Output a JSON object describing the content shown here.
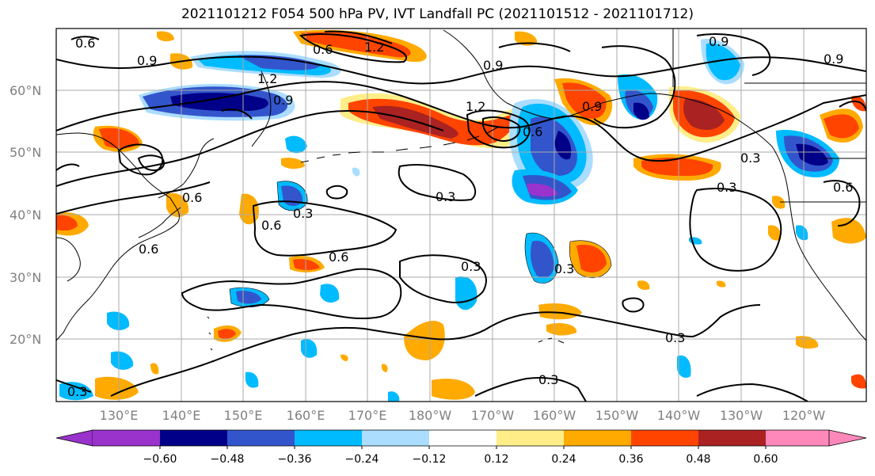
{
  "title": "2021101212 F054 500 hPa PV, IVT Landfall PC (2021101512 - 2021101712)",
  "map": {
    "lat_labels": [
      "60°N",
      "50°N",
      "40°N",
      "30°N",
      "20°N"
    ],
    "lon_labels": [
      "130°E",
      "140°E",
      "150°E",
      "160°E",
      "170°E",
      "180°W",
      "170°W",
      "160°W",
      "150°W",
      "140°W",
      "130°W",
      "120°W"
    ],
    "contour_labels": [
      "0.6",
      "0.9",
      "1.2",
      "0.6",
      "0.9",
      "1.2",
      "1.2",
      "0.6",
      "0.9",
      "0.9",
      "0.9",
      "0.6",
      "0.6",
      "0.3",
      "0.6",
      "0.3",
      "0.6",
      "0.3",
      "0.3",
      "0.3",
      "0.3",
      "0.3",
      "0.9",
      "0.3",
      "0.3",
      "0.6"
    ],
    "colors": {
      "neg_060": "#9933cc",
      "neg_048": "#000088",
      "neg_036": "#3355cc",
      "neg_024": "#00bbff",
      "neg_012": "#aaddff",
      "pos_012": "#ffee88",
      "pos_024": "#ffaa00",
      "pos_036": "#ff4400",
      "pos_048": "#aa2222",
      "pos_060": "#ff88bb"
    }
  },
  "colorbar": {
    "ticks": [
      "−0.60",
      "−0.48",
      "−0.36",
      "−0.24",
      "−0.12",
      "0.12",
      "0.24",
      "0.36",
      "0.48",
      "0.60"
    ],
    "colors": [
      "#9933cc",
      "#000088",
      "#3355cc",
      "#00bbff",
      "#aaddff",
      "#ffffff",
      "#ffee88",
      "#ffaa00",
      "#ff4400",
      "#aa2222",
      "#ff88bb"
    ]
  }
}
